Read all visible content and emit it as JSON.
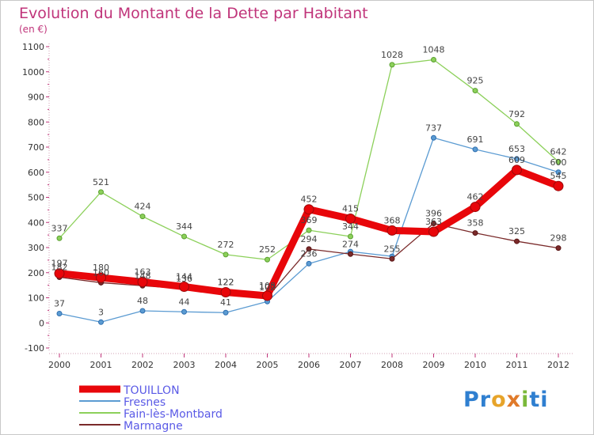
{
  "chart_data": {
    "type": "line",
    "title": "Evolution du Montant de la Dette par Habitant",
    "subtitle": "(en €)",
    "xlabel": "",
    "ylabel": "",
    "x": [
      "2000",
      "2001",
      "2002",
      "2003",
      "2004",
      "2005",
      "2006",
      "2007",
      "2008",
      "2009",
      "2010",
      "2011",
      "2012"
    ],
    "ylim": [
      -100,
      1100
    ],
    "yticks": [
      -100,
      0,
      100,
      200,
      300,
      400,
      500,
      600,
      700,
      800,
      900,
      1000,
      1100
    ],
    "grid": false,
    "legend_position": "bottom-left",
    "series": [
      {
        "name": "TOUILLON",
        "color": "#e8060a",
        "emphasis": true,
        "values": [
          197,
          180,
          163,
          144,
          122,
          108,
          452,
          415,
          368,
          363,
          462,
          609,
          545
        ]
      },
      {
        "name": "Fresnes",
        "color": "#5b9bd2",
        "emphasis": false,
        "values": [
          37,
          3,
          48,
          44,
          41,
          85,
          236,
          284,
          265,
          737,
          691,
          653,
          600
        ]
      },
      {
        "name": "Fain-lès-Montbard",
        "color": "#8cd05a",
        "emphasis": false,
        "values": [
          337,
          521,
          424,
          344,
          272,
          252,
          369,
          344,
          1028,
          1048,
          925,
          792,
          642
        ]
      },
      {
        "name": "Marmagne",
        "color": "#7a2a2a",
        "emphasis": false,
        "values": [
          182,
          160,
          148,
          136,
          122,
          102,
          294,
          274,
          255,
          396,
          358,
          325,
          298
        ]
      }
    ],
    "data_labels": [
      [
        "197",
        "180",
        "163",
        "144",
        "122",
        "108",
        "452",
        "415",
        "368",
        "363",
        "462",
        "609",
        "545"
      ],
      [
        "37",
        "3",
        "48",
        "44",
        "41",
        "",
        "236",
        "",
        "",
        "737",
        "691",
        "653",
        "600"
      ],
      [
        "337",
        "521",
        "424",
        "344",
        "272",
        "252",
        "369",
        "344",
        "1028",
        "1048",
        "925",
        "792",
        "642"
      ],
      [
        "182",
        "160",
        "148",
        "136",
        "122",
        "102",
        "294",
        "274",
        "255",
        "396",
        "358",
        "325",
        "298"
      ]
    ]
  },
  "logo": {
    "p1": "Pr",
    "p2": "o",
    "p3": "x",
    "p4": "i",
    "p5": "ti"
  }
}
